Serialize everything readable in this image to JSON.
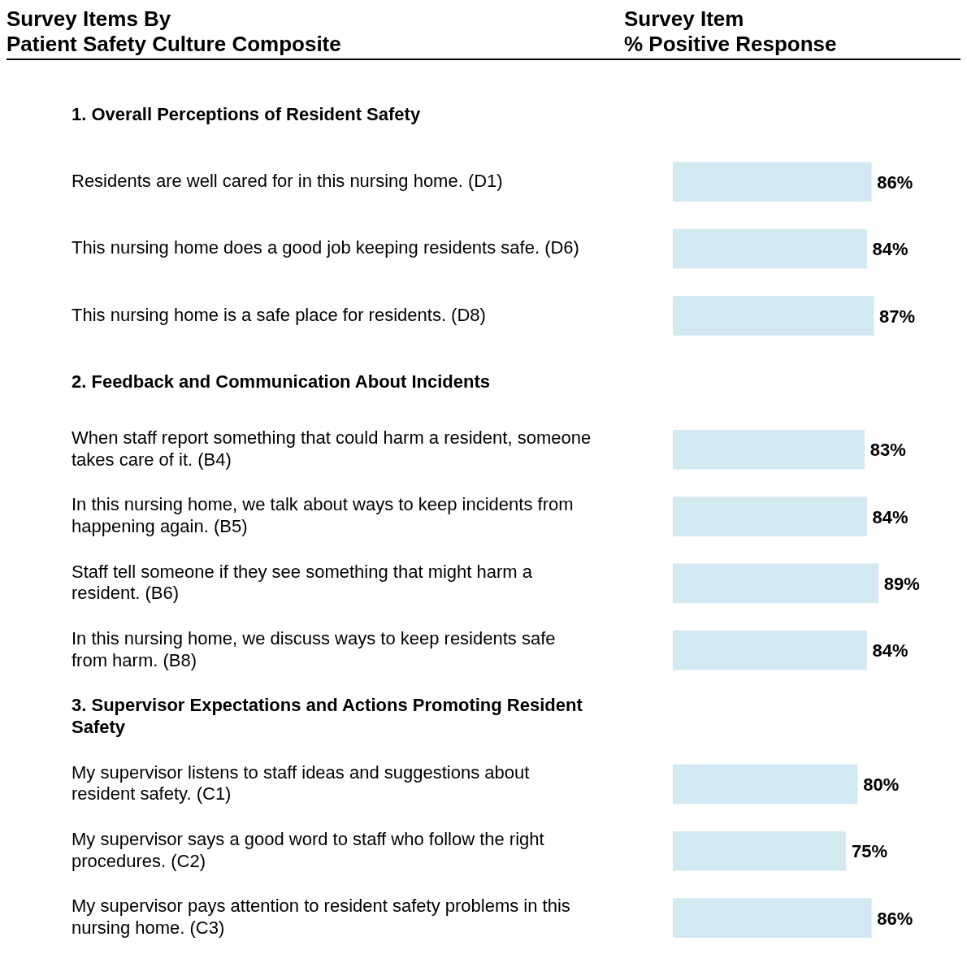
{
  "chart_data": {
    "type": "bar",
    "orientation": "horizontal",
    "ylabel": "Survey Items By\nPatient Safety Culture Composite",
    "xlabel": "Survey Item\n% Positive Response",
    "categories": [
      "1. Overall Perceptions of Resident Safety",
      "Residents are well cared for in this nursing home. (D1)",
      "This nursing home does a good job keeping residents safe. (D6)",
      "This nursing home is a safe place for residents. (D8)",
      "2. Feedback and Communication About Incidents",
      "When staff report something that could harm a resident, someone takes care of it. (B4)",
      "In this nursing home, we talk about ways to keep incidents from happening again. (B5)",
      "Staff tell someone if they see something that might harm a resident. (B6)",
      "In this nursing home, we discuss ways to keep residents safe from harm. (B8)",
      "3. Supervisor Expectations and Actions Promoting Resident Safety",
      "My supervisor listens to staff ideas and suggestions about resident safety. (C1)",
      "My supervisor says a good word to staff who follow the right procedures. (C2)",
      "My supervisor pays attention to resident safety problems in this nursing home. (C3)"
    ],
    "values": [
      null,
      86,
      84,
      87,
      null,
      83,
      84,
      89,
      84,
      null,
      80,
      75,
      86
    ],
    "value_labels": [
      null,
      "86%",
      "84%",
      "87%",
      null,
      "83%",
      "84%",
      "89%",
      "84%",
      null,
      "80%",
      "75%",
      "86%"
    ],
    "color": "#d3e9f1",
    "tick_labels": "y",
    "grid": false,
    "legend": false
  }
}
